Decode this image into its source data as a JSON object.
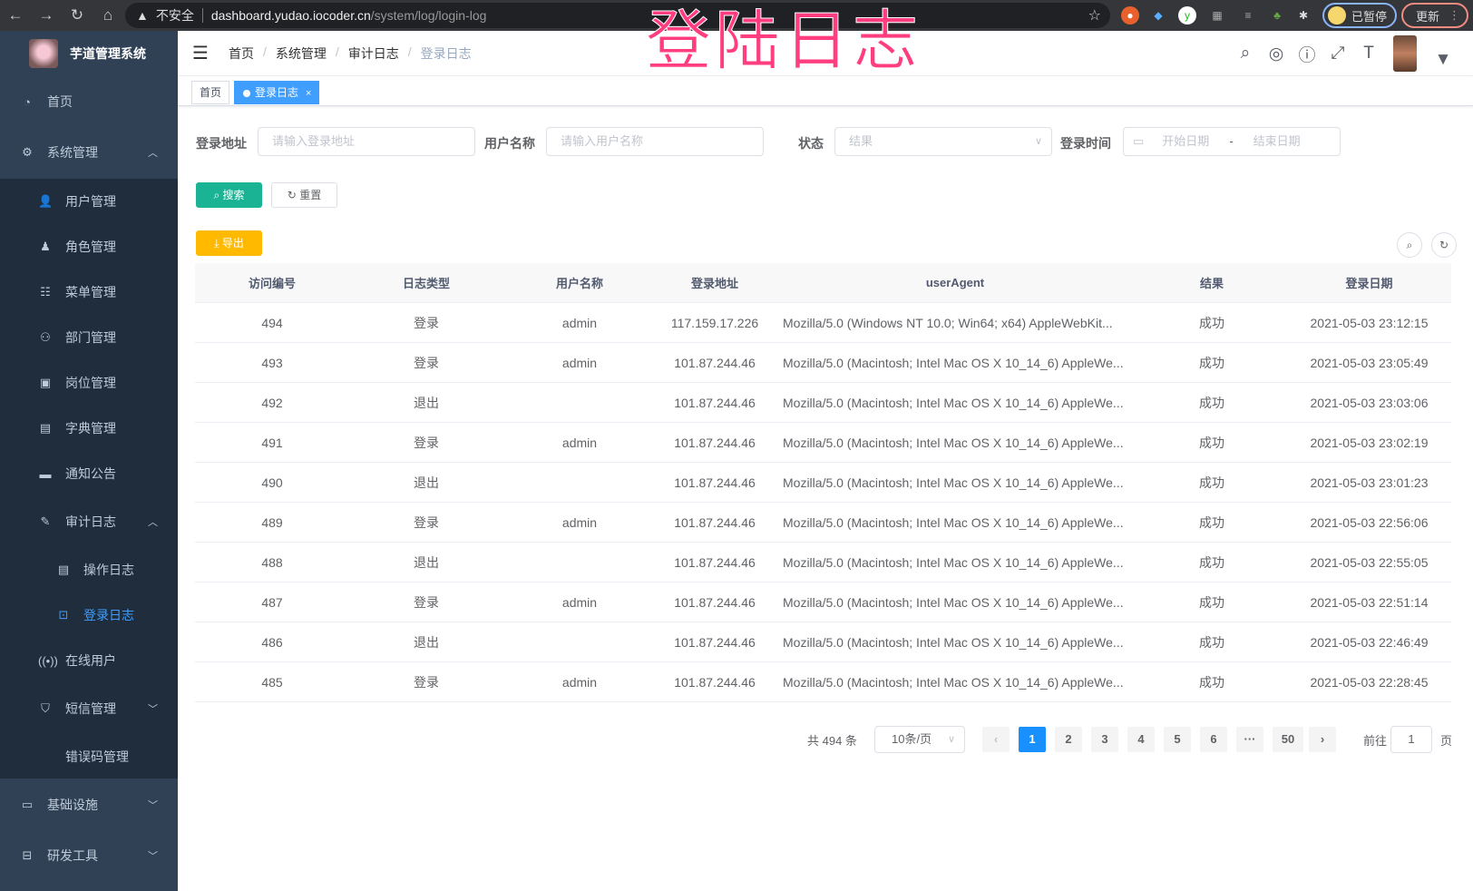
{
  "browser": {
    "security": "不安全",
    "host": "dashboard.yudao.iocoder.cn",
    "path": "/system/log/login-log",
    "profile": "已暂停",
    "update": "更新"
  },
  "overlay_title": "登陆日志",
  "sidebar": {
    "title": "芋道管理系统",
    "items": [
      {
        "label": "首页",
        "icon": "dashboard-icon"
      },
      {
        "label": "系统管理",
        "icon": "gear-icon",
        "chevron": "up"
      },
      {
        "label": "用户管理",
        "icon": "user-icon"
      },
      {
        "label": "角色管理",
        "icon": "role-icon"
      },
      {
        "label": "菜单管理",
        "icon": "menu-icon"
      },
      {
        "label": "部门管理",
        "icon": "tree-icon"
      },
      {
        "label": "岗位管理",
        "icon": "post-icon"
      },
      {
        "label": "字典管理",
        "icon": "dict-icon"
      },
      {
        "label": "通知公告",
        "icon": "message-icon"
      },
      {
        "label": "审计日志",
        "icon": "log-icon",
        "chevron": "up"
      },
      {
        "label": "操作日志",
        "icon": "form-icon"
      },
      {
        "label": "登录日志",
        "icon": "login-log-icon",
        "active": true
      },
      {
        "label": "在线用户",
        "icon": "online-icon"
      },
      {
        "label": "短信管理",
        "icon": "shield-icon",
        "chevron": "down"
      },
      {
        "label": "错误码管理",
        "icon": "code-icon"
      },
      {
        "label": "基础设施",
        "icon": "monitor-icon",
        "chevron": "down"
      },
      {
        "label": "研发工具",
        "icon": "toolbox-icon",
        "chevron": "down"
      }
    ]
  },
  "breadcrumb": [
    "首页",
    "系统管理",
    "审计日志",
    "登录日志"
  ],
  "tags": [
    {
      "label": "首页"
    },
    {
      "label": "登录日志",
      "close": "×"
    }
  ],
  "filters": {
    "addr_label": "登录地址",
    "addr_placeholder": "请输入登录地址",
    "user_label": "用户名称",
    "user_placeholder": "请输入用户名称",
    "status_label": "状态",
    "status_placeholder": "结果",
    "time_label": "登录时间",
    "start_placeholder": "开始日期",
    "range_sep": "-",
    "end_placeholder": "结束日期"
  },
  "buttons": {
    "search": "搜索",
    "reset": "重置",
    "export": "导出"
  },
  "colors": {
    "sidebar": "#304156",
    "submenu": "#1f2d3d",
    "active": "#409eff",
    "search": "#1ab394",
    "export": "#ffba00"
  },
  "table": {
    "columns": [
      "访问编号",
      "日志类型",
      "用户名称",
      "登录地址",
      "userAgent",
      "结果",
      "登录日期"
    ],
    "rows": [
      [
        "494",
        "登录",
        "admin",
        "117.159.17.226",
        "Mozilla/5.0 (Windows NT 10.0; Win64; x64) AppleWebKit...",
        "成功",
        "2021-05-03 23:12:15"
      ],
      [
        "493",
        "登录",
        "admin",
        "101.87.244.46",
        "Mozilla/5.0 (Macintosh; Intel Mac OS X 10_14_6) AppleWe...",
        "成功",
        "2021-05-03 23:05:49"
      ],
      [
        "492",
        "退出",
        "",
        "101.87.244.46",
        "Mozilla/5.0 (Macintosh; Intel Mac OS X 10_14_6) AppleWe...",
        "成功",
        "2021-05-03 23:03:06"
      ],
      [
        "491",
        "登录",
        "admin",
        "101.87.244.46",
        "Mozilla/5.0 (Macintosh; Intel Mac OS X 10_14_6) AppleWe...",
        "成功",
        "2021-05-03 23:02:19"
      ],
      [
        "490",
        "退出",
        "",
        "101.87.244.46",
        "Mozilla/5.0 (Macintosh; Intel Mac OS X 10_14_6) AppleWe...",
        "成功",
        "2021-05-03 23:01:23"
      ],
      [
        "489",
        "登录",
        "admin",
        "101.87.244.46",
        "Mozilla/5.0 (Macintosh; Intel Mac OS X 10_14_6) AppleWe...",
        "成功",
        "2021-05-03 22:56:06"
      ],
      [
        "488",
        "退出",
        "",
        "101.87.244.46",
        "Mozilla/5.0 (Macintosh; Intel Mac OS X 10_14_6) AppleWe...",
        "成功",
        "2021-05-03 22:55:05"
      ],
      [
        "487",
        "登录",
        "admin",
        "101.87.244.46",
        "Mozilla/5.0 (Macintosh; Intel Mac OS X 10_14_6) AppleWe...",
        "成功",
        "2021-05-03 22:51:14"
      ],
      [
        "486",
        "退出",
        "",
        "101.87.244.46",
        "Mozilla/5.0 (Macintosh; Intel Mac OS X 10_14_6) AppleWe...",
        "成功",
        "2021-05-03 22:46:49"
      ],
      [
        "485",
        "登录",
        "admin",
        "101.87.244.46",
        "Mozilla/5.0 (Macintosh; Intel Mac OS X 10_14_6) AppleWe...",
        "成功",
        "2021-05-03 22:28:45"
      ]
    ]
  },
  "pagination": {
    "total": "共 494 条",
    "page_size": "10条/页",
    "pages": [
      "1",
      "2",
      "3",
      "4",
      "5",
      "6",
      "···",
      "50"
    ],
    "current": "1",
    "prev": "‹",
    "next": "›",
    "goto_label": "前往",
    "goto_value": "1",
    "goto_suffix": "页"
  }
}
